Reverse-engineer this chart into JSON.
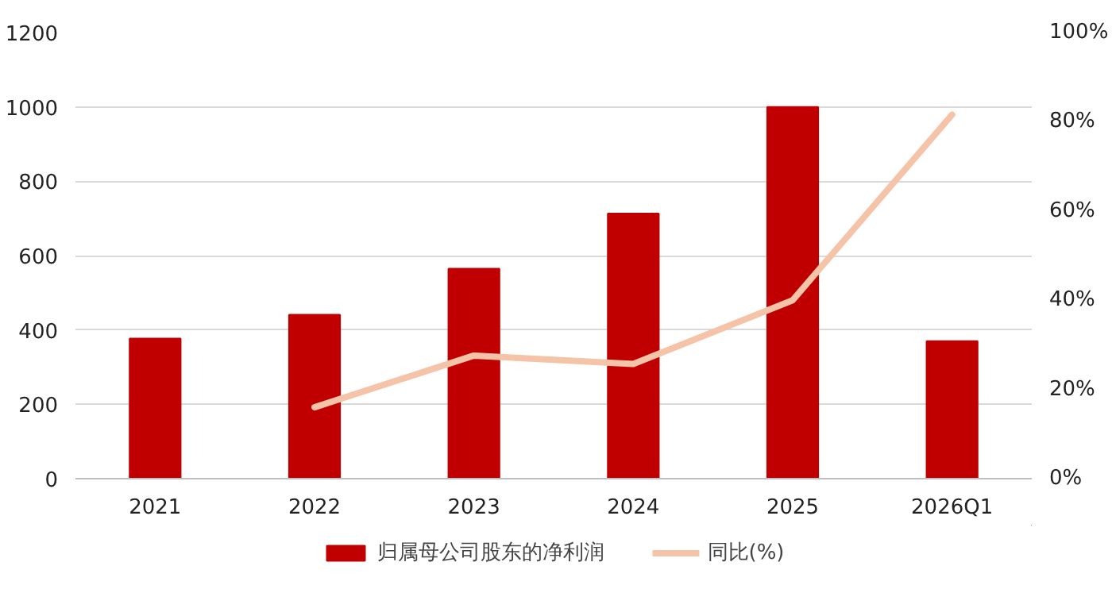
{
  "chart_data": {
    "type": "bar",
    "categories": [
      "2021",
      "2022",
      "2023",
      "2024",
      "2025",
      "2026Q1"
    ],
    "series": [
      {
        "name": "归属母公司股东的净利润",
        "color": "#c00000",
        "values": [
          377,
          441,
          565,
          713,
          1000,
          370
        ]
      },
      {
        "name": "同比(%)",
        "type": "line",
        "axis": "y2",
        "color": "#f5c3a8",
        "values": [
          null,
          16,
          27.6,
          25.7,
          40,
          81.6
        ]
      }
    ],
    "ylim": [
      0,
      1200
    ],
    "yticks": [
      0,
      200,
      400,
      600,
      800,
      1000,
      1200
    ],
    "y2lim": [
      0,
      100
    ],
    "y2ticks": [
      {
        "value": 0,
        "label": "0%"
      },
      {
        "value": 20,
        "label": "20%"
      },
      {
        "value": 40,
        "label": "40%"
      },
      {
        "value": 60,
        "label": "60%"
      },
      {
        "value": 80,
        "label": "80%"
      },
      {
        "value": 100,
        "label": "100%"
      }
    ],
    "grid": "y",
    "legend": "bottom",
    "marker": "none",
    "line_style": "solid"
  }
}
